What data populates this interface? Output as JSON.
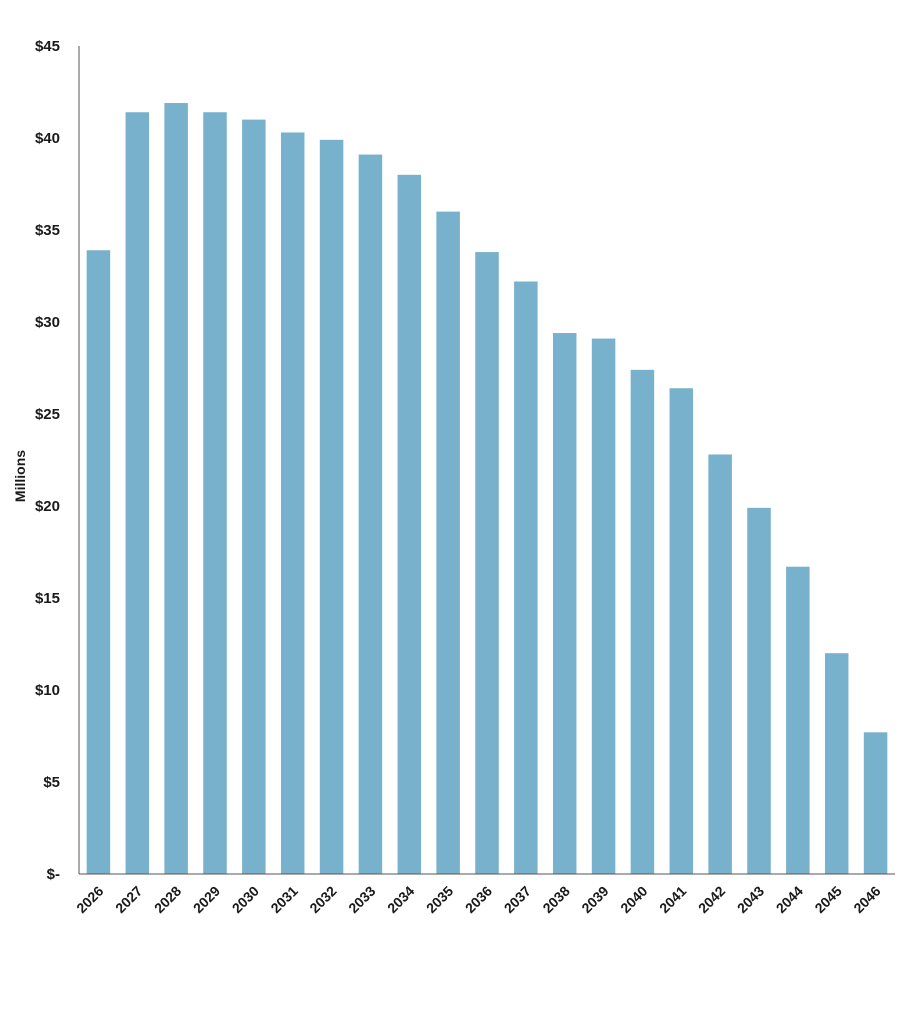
{
  "chart_data": {
    "type": "bar",
    "title": "",
    "xlabel": "",
    "ylabel": "Millions",
    "ylim": [
      0,
      45
    ],
    "yticks": [
      0,
      5,
      10,
      15,
      20,
      25,
      30,
      35,
      40,
      45
    ],
    "ytick_labels": [
      "$-",
      "$5",
      "$10",
      "$15",
      "$20",
      "$25",
      "$30",
      "$35",
      "$40",
      "$45"
    ],
    "categories": [
      "2026",
      "2027",
      "2028",
      "2029",
      "2030",
      "2031",
      "2032",
      "2033",
      "2034",
      "2035",
      "2036",
      "2037",
      "2038",
      "2039",
      "2040",
      "2041",
      "2042",
      "2043",
      "2044",
      "2045",
      "2046"
    ],
    "values": [
      33.9,
      41.4,
      41.9,
      41.4,
      41.0,
      40.3,
      39.9,
      39.1,
      38.0,
      36.0,
      33.8,
      32.2,
      29.4,
      29.1,
      27.4,
      26.4,
      22.8,
      19.9,
      16.7,
      12.0,
      7.7
    ],
    "grid": false,
    "legend": "none",
    "bar_color": "#77b1cc"
  }
}
